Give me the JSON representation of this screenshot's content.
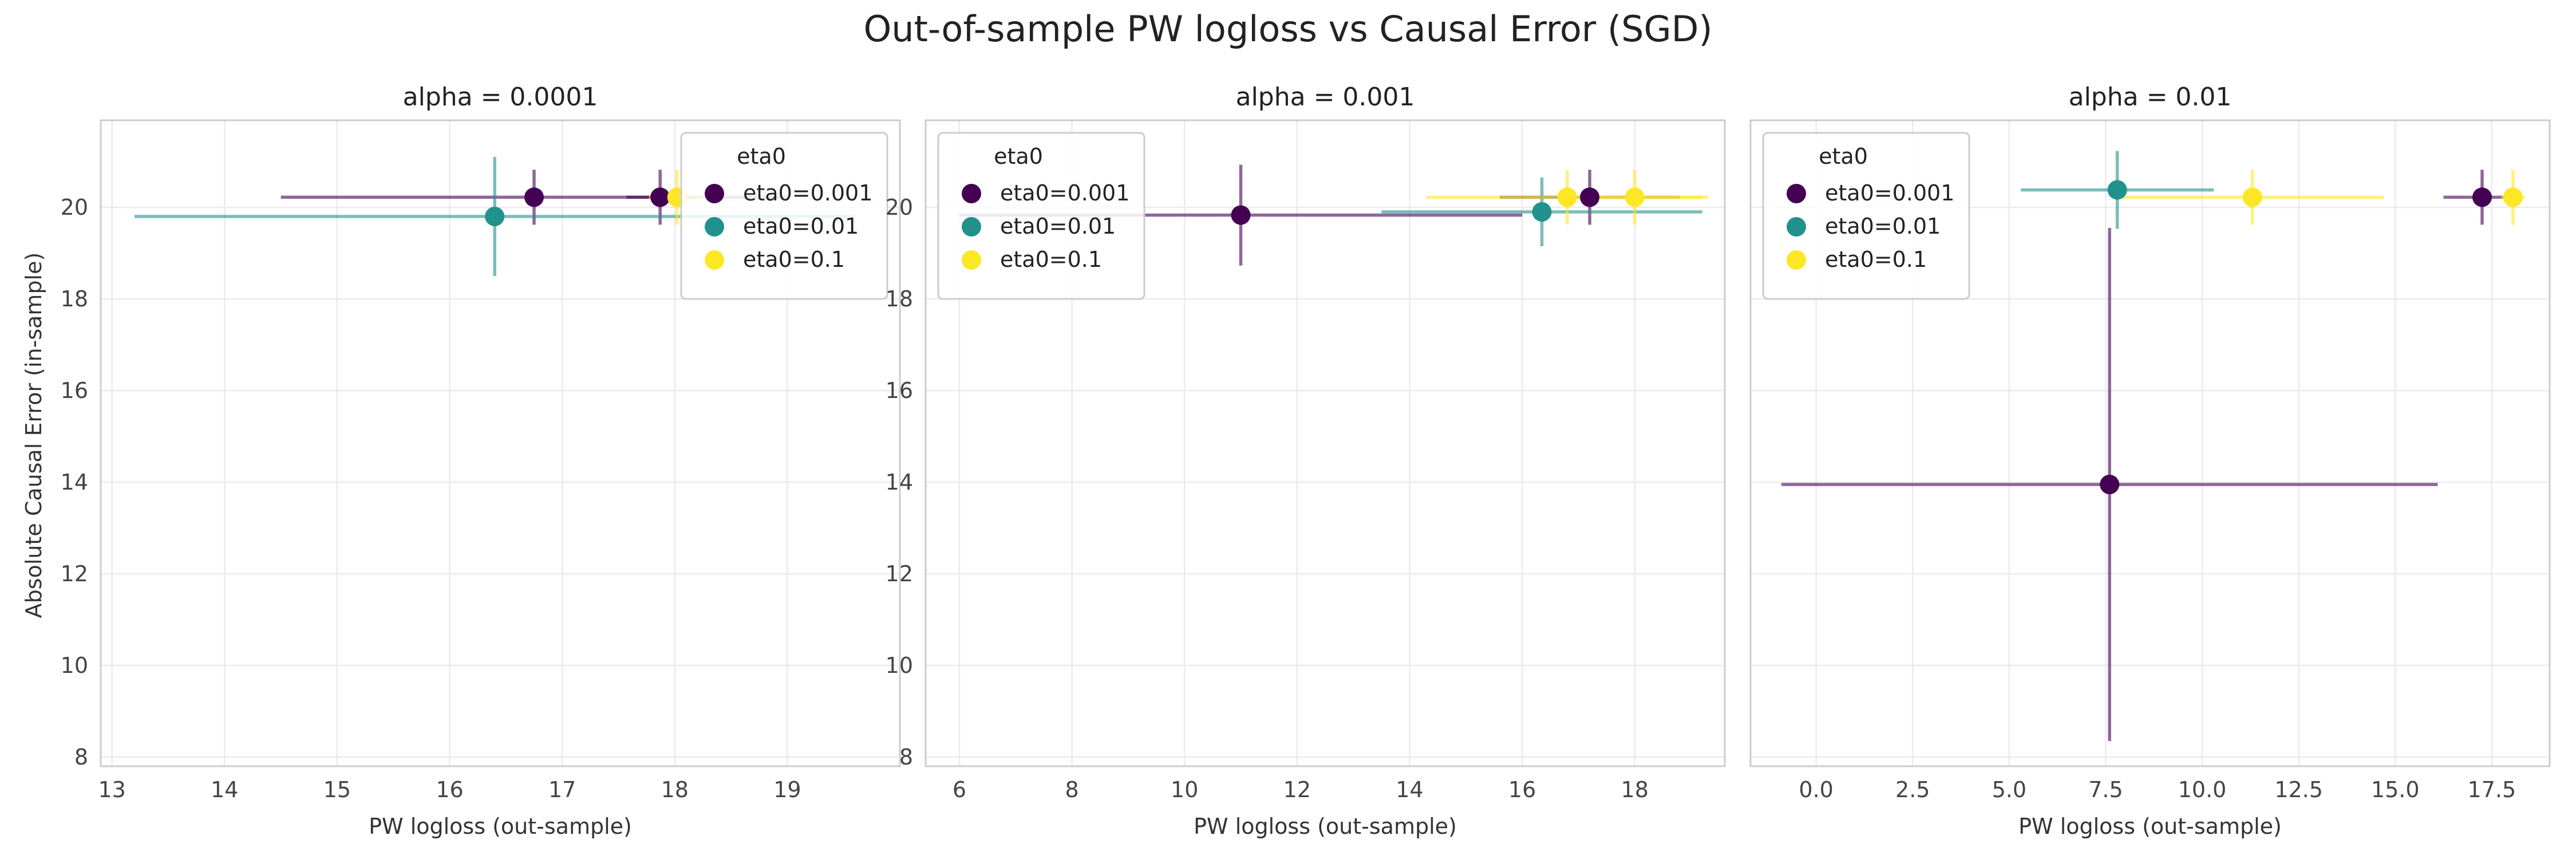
{
  "figure": {
    "title": "Out-of-sample PW logloss vs Causal Error (SGD)",
    "ylabel": "Absolute Causal Error (in-sample)",
    "xlabel": "PW logloss (out-sample)",
    "grid": true
  },
  "colors": {
    "eta0=0.001": "#440154",
    "eta0=0.01": "#21918c",
    "eta0=0.1": "#fde725"
  },
  "chart_data": [
    {
      "type": "scatter",
      "title": "alpha = 0.0001",
      "xlabel": "PW logloss (out-sample)",
      "ylabel": "Absolute Causal Error (in-sample)",
      "xlim": [
        12.9,
        20.0
      ],
      "ylim": [
        7.8,
        21.9
      ],
      "xticks": [
        13,
        14,
        15,
        16,
        17,
        18,
        19
      ],
      "yticks": [
        8,
        10,
        12,
        14,
        16,
        18,
        20
      ],
      "legend": {
        "title": "eta0",
        "loc": "top-right"
      },
      "series": [
        {
          "name": "eta0=0.001",
          "points": [
            {
              "x": 16.75,
              "y": 20.22,
              "xerr": [
                2.25,
                2.25
              ],
              "yerr": [
                0.6,
                0.6
              ]
            },
            {
              "x": 17.87,
              "y": 20.22,
              "xerr": [
                0.3,
                0.3
              ],
              "yerr": [
                0.6,
                0.6
              ]
            }
          ]
        },
        {
          "name": "eta0=0.01",
          "points": [
            {
              "x": 16.4,
              "y": 19.8,
              "xerr": [
                3.2,
                3.2
              ],
              "yerr": [
                1.3,
                1.3
              ]
            }
          ]
        },
        {
          "name": "eta0=0.1",
          "points": [
            {
              "x": 18.02,
              "y": 20.22,
              "xerr": [
                0.25,
                0.25
              ],
              "yerr": [
                0.6,
                0.6
              ]
            }
          ]
        }
      ]
    },
    {
      "type": "scatter",
      "title": "alpha = 0.001",
      "xlabel": "PW logloss (out-sample)",
      "ylabel": "",
      "xlim": [
        5.4,
        19.6
      ],
      "ylim": [
        7.8,
        21.9
      ],
      "xticks": [
        6,
        8,
        10,
        12,
        14,
        16,
        18
      ],
      "yticks": [
        8,
        10,
        12,
        14,
        16,
        18,
        20
      ],
      "legend": {
        "title": "eta0",
        "loc": "top-left"
      },
      "series": [
        {
          "name": "eta0=0.001",
          "points": [
            {
              "x": 11.0,
              "y": 19.83,
              "xerr": [
                5.0,
                5.0
              ],
              "yerr": [
                1.1,
                1.1
              ]
            },
            {
              "x": 17.2,
              "y": 20.22,
              "xerr": [
                1.6,
                1.6
              ],
              "yerr": [
                0.6,
                0.6
              ]
            }
          ]
        },
        {
          "name": "eta0=0.01",
          "points": [
            {
              "x": 16.35,
              "y": 19.9,
              "xerr": [
                2.85,
                2.85
              ],
              "yerr": [
                0.75,
                0.75
              ]
            }
          ]
        },
        {
          "name": "eta0=0.1",
          "points": [
            {
              "x": 16.8,
              "y": 20.22,
              "xerr": [
                2.5,
                2.5
              ],
              "yerr": [
                0.6,
                0.6
              ]
            },
            {
              "x": 18.0,
              "y": 20.22,
              "xerr": [
                1.2,
                1.2
              ],
              "yerr": [
                0.6,
                0.6
              ]
            }
          ]
        }
      ]
    },
    {
      "type": "scatter",
      "title": "alpha = 0.01",
      "xlabel": "PW logloss (out-sample)",
      "ylabel": "",
      "xlim": [
        -1.7,
        19.0
      ],
      "ylim": [
        7.8,
        21.9
      ],
      "xticks": [
        0.0,
        2.5,
        5.0,
        7.5,
        10.0,
        12.5,
        15.0,
        17.5
      ],
      "ytick_labels_visible": false,
      "yticks": [
        8,
        10,
        12,
        14,
        16,
        18,
        20
      ],
      "legend": {
        "title": "eta0",
        "loc": "top-left"
      },
      "series": [
        {
          "name": "eta0=0.001",
          "points": [
            {
              "x": 7.6,
              "y": 13.95,
              "xerr": [
                8.5,
                8.5
              ],
              "yerr": [
                5.6,
                5.6
              ]
            },
            {
              "x": 17.25,
              "y": 20.22,
              "xerr": [
                1.0,
                1.0
              ],
              "yerr": [
                0.6,
                0.6
              ]
            }
          ]
        },
        {
          "name": "eta0=0.01",
          "points": [
            {
              "x": 7.8,
              "y": 20.38,
              "xerr": [
                2.5,
                2.5
              ],
              "yerr": [
                0.85,
                0.85
              ]
            }
          ]
        },
        {
          "name": "eta0=0.1",
          "points": [
            {
              "x": 11.3,
              "y": 20.22,
              "xerr": [
                3.4,
                3.4
              ],
              "yerr": [
                0.6,
                0.6
              ]
            },
            {
              "x": 18.05,
              "y": 20.22,
              "xerr": [
                0.3,
                0.3
              ],
              "yerr": [
                0.6,
                0.6
              ]
            }
          ]
        }
      ]
    }
  ]
}
